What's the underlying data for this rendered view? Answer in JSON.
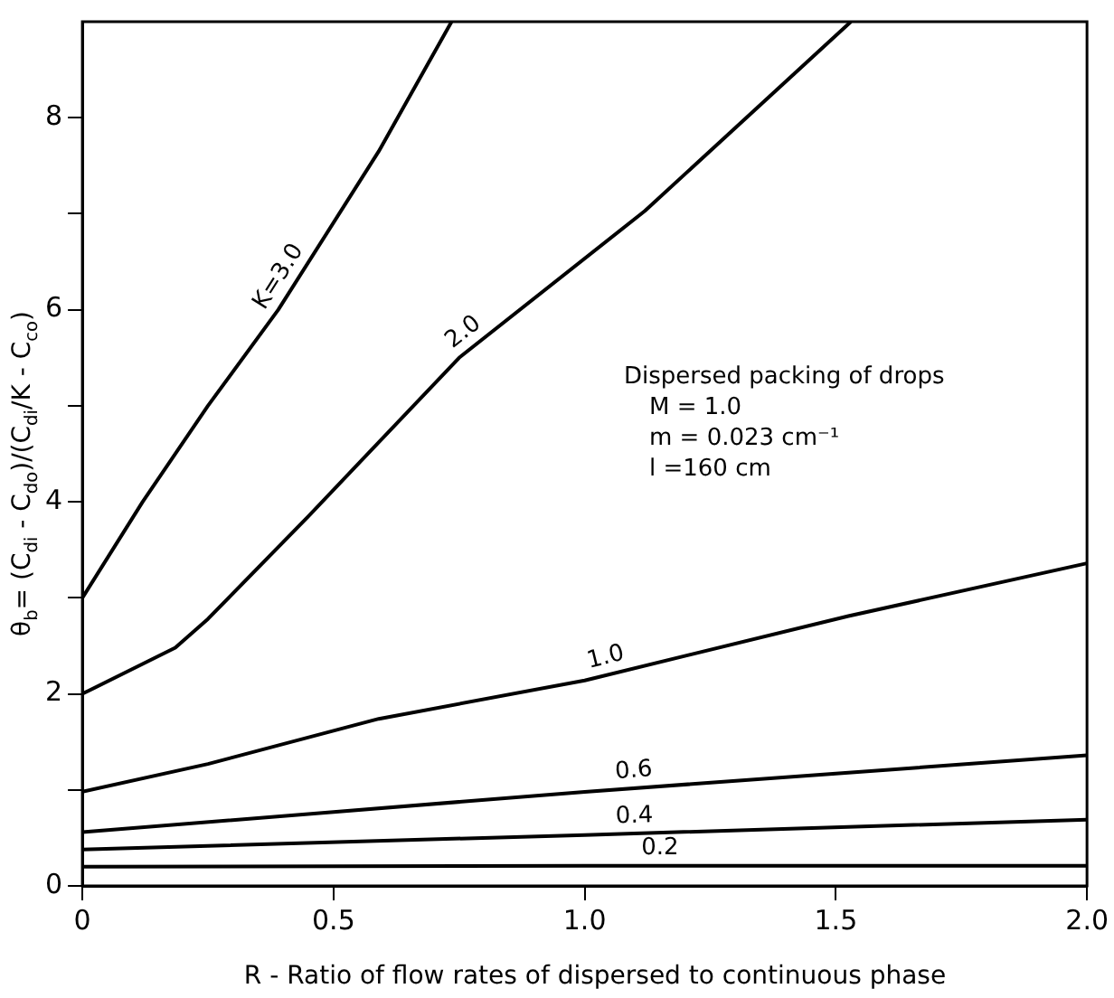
{
  "chart_data": {
    "type": "line",
    "xlabel": "R - Ratio of flow rates of dispersed to continuous phase",
    "ylabel": "θ$_{b}$= (C$_{di}$ - C$_{do}$)/(C$_{di}$/K - C$_{co}$)",
    "annotations": [
      "Dispersed packing of drops",
      "M = 1.0",
      "m = 0.023 cm⁻¹",
      "l =160 cm"
    ],
    "series": [
      {
        "name": "K=3.0",
        "color": "#000000",
        "x": [
          0,
          0.12,
          0.25,
          0.39,
          0.59,
          0.735
        ],
        "values": [
          3.0,
          4.0,
          5.0,
          6.0,
          7.65,
          9.0
        ]
      },
      {
        "name": "2.0",
        "color": "#000000",
        "x": [
          0,
          0.185,
          0.25,
          0.45,
          0.75,
          1.12,
          1.53
        ],
        "values": [
          2.0,
          2.48,
          2.78,
          3.85,
          5.5,
          7.03,
          9.0
        ]
      },
      {
        "name": "1.0",
        "color": "#000000",
        "x": [
          0,
          0.25,
          0.59,
          1.0,
          1.525,
          2.0
        ],
        "values": [
          0.98,
          1.27,
          1.74,
          2.14,
          2.81,
          3.36
        ]
      },
      {
        "name": "0.6",
        "color": "#000000",
        "x": [
          0,
          0.5,
          1.0,
          1.5,
          2.0
        ],
        "values": [
          0.56,
          0.77,
          0.98,
          1.17,
          1.36
        ]
      },
      {
        "name": "0.4",
        "color": "#000000",
        "x": [
          0,
          1.0,
          2.0
        ],
        "values": [
          0.38,
          0.53,
          0.69
        ]
      },
      {
        "name": "0.2",
        "color": "#000000",
        "x": [
          0,
          1.0,
          2.0
        ],
        "values": [
          0.2,
          0.21,
          0.21
        ]
      }
    ],
    "xlim": [
      0,
      2.0
    ],
    "xticks": [
      0,
      {
        "value": 0.5,
        "label": "0.5"
      },
      {
        "value": 1.0,
        "label": "1.0"
      },
      {
        "value": 1.5,
        "label": "1.5"
      },
      {
        "value": 2.0,
        "label": "2.0"
      }
    ],
    "ylim": [
      0,
      9
    ],
    "yticks": [
      0,
      {
        "value": 1,
        "label": null
      },
      2,
      {
        "value": 3,
        "label": null
      },
      4,
      {
        "value": 5,
        "label": null
      },
      6,
      {
        "value": 7,
        "label": null
      },
      8
    ],
    "grid": false,
    "legend": false,
    "marker": "none",
    "line_style": "solid"
  }
}
